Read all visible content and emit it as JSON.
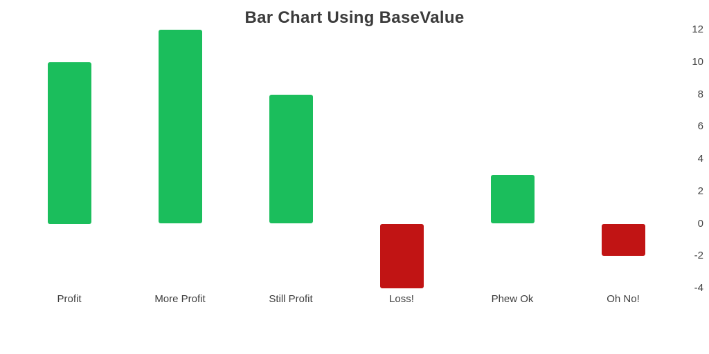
{
  "title": "Bar Chart Using BaseValue",
  "colors": {
    "positive": "#1bbe5c",
    "negative": "#c11414",
    "title_text": "#3b3b3b",
    "axis_text": "#424242",
    "background": "#ffffff"
  },
  "chart_data": {
    "type": "bar",
    "title": "Bar Chart Using BaseValue",
    "categories": [
      "Profit",
      "More Profit",
      "Still Profit",
      "Loss!",
      "Phew Ok",
      "Oh No!"
    ],
    "values": [
      10,
      12,
      8,
      -4,
      3,
      -2
    ],
    "base_value": 0,
    "xlabel": "",
    "ylabel": "",
    "ylim": [
      -4,
      12
    ],
    "y_ticks": [
      -4,
      -2,
      0,
      2,
      4,
      6,
      8,
      10,
      12
    ],
    "y_axis_position": "right",
    "grid": false,
    "legend": false,
    "positive_color": "#1bbe5c",
    "negative_color": "#c11414"
  }
}
